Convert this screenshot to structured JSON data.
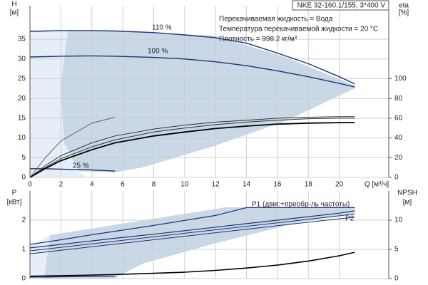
{
  "chart_data": [
    {
      "type": "line",
      "title": "NKE 32-160.1/155, 3*400 V",
      "annotations": [
        "Перекачиваемая жидкость = Вода",
        "Температура перекачиваемой жидкости = 20 °C",
        "Плотность = 998.2 кг/м³"
      ],
      "xlabel": "Q [м³/ч]",
      "ylabel": "H",
      "yunit": "[м]",
      "y2label": "eta",
      "y2unit": "[%]",
      "xlim": [
        0,
        23.2
      ],
      "ylim": [
        0,
        43.5
      ],
      "y2lim": [
        0,
        174
      ],
      "xticks": [
        0,
        2,
        4,
        6,
        8,
        10,
        12,
        14,
        16,
        18,
        20
      ],
      "yticks": [
        0,
        5,
        10,
        15,
        20,
        25,
        30,
        35
      ],
      "y2ticks": [
        0,
        20,
        40,
        60,
        80,
        100
      ],
      "grid": true,
      "x": [
        0,
        1,
        2,
        4,
        5.5,
        8,
        10,
        12,
        14,
        16,
        18,
        20,
        21
      ],
      "series": [
        {
          "name": "110 %",
          "color": "#1b3577",
          "width": 1.4,
          "values": [
            37,
            37.1,
            37.2,
            37.2,
            37.1,
            36.7,
            36.1,
            35.4,
            34,
            31.5,
            28.8,
            25.5,
            23.7
          ]
        },
        {
          "name": "100 %",
          "color": "#1b3577",
          "width": 1.4,
          "values": [
            30.5,
            30.6,
            30.7,
            30.8,
            30.7,
            30.4,
            30,
            29.3,
            28.3,
            27,
            25.5,
            23.8,
            22.9
          ]
        },
        {
          "name": "25 %",
          "color": "#1b3577",
          "width": 1.4,
          "values": [
            2.2,
            2.2,
            2.1,
            1.9,
            1.6,
            null,
            null,
            null,
            null,
            null,
            null,
            null,
            null
          ]
        },
        {
          "axis": "y2",
          "color": "#333333",
          "width": 1,
          "values": [
            0,
            12,
            22,
            35,
            42,
            49,
            53,
            56,
            58,
            60,
            61,
            61.5,
            61.5
          ]
        },
        {
          "axis": "y2",
          "color": "#333333",
          "width": 1,
          "values": [
            0,
            10,
            19,
            31,
            38,
            46,
            50,
            53.5,
            56,
            58,
            59.5,
            60,
            60
          ]
        },
        {
          "axis": "y2",
          "color": "#000000",
          "width": 1.8,
          "values": [
            0,
            9,
            17,
            28,
            35,
            42,
            46,
            49.5,
            52,
            54,
            55,
            55.5,
            55.5
          ]
        },
        {
          "axis": "y2",
          "color": "#444444",
          "width": 0.8,
          "values": [
            0,
            20,
            37,
            55,
            61,
            null,
            null,
            null,
            null,
            null,
            null,
            null,
            null
          ]
        }
      ]
    },
    {
      "type": "line",
      "ylabel": "P",
      "yunit": "[кВт]",
      "y2label": "NPSH",
      "y2unit": "[м]",
      "xlim": [
        0,
        23.2
      ],
      "ylim": [
        0,
        3
      ],
      "y2lim": [
        0,
        15
      ],
      "xticks": [
        0,
        2,
        4,
        6,
        8,
        10,
        12,
        14,
        16,
        18,
        20
      ],
      "yticks": [
        0,
        1,
        2
      ],
      "y2ticks": [
        0,
        5,
        10
      ],
      "grid": true,
      "x": [
        0,
        1,
        2,
        4,
        5.5,
        8,
        10,
        12,
        14,
        16,
        18,
        20,
        21
      ],
      "series": [
        {
          "name": "P1 (двиг.+преобр-ль частоты)",
          "color": "#1b3577",
          "width": 1.2,
          "values": [
            1.17,
            1.25,
            1.33,
            1.5,
            1.62,
            1.82,
            1.99,
            2.16,
            2.43,
            2.43,
            2.43,
            2.43,
            2.43
          ]
        },
        {
          "color": "#1b3577",
          "width": 1.2,
          "values": [
            1.05,
            1.11,
            1.17,
            1.29,
            1.38,
            1.52,
            1.64,
            1.76,
            1.88,
            2.0,
            2.12,
            2.24,
            2.32
          ]
        },
        {
          "name": "P2",
          "color": "#1b3577",
          "width": 1,
          "values": [
            0.95,
            1.01,
            1.07,
            1.19,
            1.28,
            1.43,
            1.55,
            1.67,
            1.79,
            1.91,
            2.03,
            2.15,
            2.21
          ]
        },
        {
          "color": "#1b3577",
          "width": 1,
          "values": [
            0.85,
            0.91,
            0.97,
            1.09,
            1.18,
            1.33,
            1.45,
            1.57,
            1.69,
            1.81,
            1.93,
            2.05,
            2.1
          ]
        },
        {
          "color": "#1b3577",
          "width": 1.2,
          "values": [
            0.05,
            0.05,
            0.06,
            0.07,
            0.08,
            null,
            null,
            null,
            null,
            null,
            null,
            null,
            null
          ]
        },
        {
          "axis": "y2",
          "color": "#000000",
          "width": 1.6,
          "values": [
            0.4,
            0.45,
            0.5,
            0.6,
            0.7,
            0.9,
            1.1,
            1.4,
            1.8,
            2.3,
            3.0,
            3.9,
            4.5
          ]
        }
      ]
    }
  ]
}
